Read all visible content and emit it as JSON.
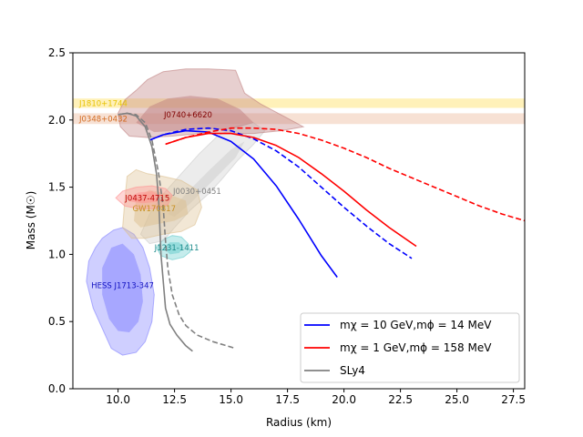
{
  "chart_data": {
    "type": "line",
    "title": "",
    "xlabel": "Radius (km)",
    "ylabel": "Mass (M☉)",
    "xlim": [
      8.0,
      28.0
    ],
    "ylim": [
      0.0,
      2.5
    ],
    "xticks": [
      10.0,
      12.5,
      15.0,
      17.5,
      20.0,
      22.5,
      25.0,
      27.5
    ],
    "xtick_labels": [
      "10.0",
      "12.5",
      "15.0",
      "17.5",
      "20.0",
      "22.5",
      "25.0",
      "27.5"
    ],
    "yticks": [
      0.0,
      0.5,
      1.0,
      1.5,
      2.0,
      2.5
    ],
    "ytick_labels": [
      "0.0",
      "0.5",
      "1.0",
      "1.5",
      "2.0",
      "2.5"
    ],
    "grid": false,
    "legend_position": "lower-right",
    "bands": [
      {
        "name": "J1810+1744",
        "label": "J1810+1744",
        "ymin": 2.09,
        "ymax": 2.16,
        "color": "#ffe680",
        "text_color": "#e6c200"
      },
      {
        "name": "J0348+0432",
        "label": "J0348+0432",
        "ymin": 1.97,
        "ymax": 2.05,
        "color": "#f0c8b0",
        "text_color": "#d2691e"
      }
    ],
    "regions": [
      {
        "name": "HESS J1713-347",
        "label": "HESS J1713-347",
        "label_pos": [
          10.2,
          0.77
        ],
        "color": "#8080ff",
        "text_color": "#1010c0",
        "outer": [
          [
            8.7,
            0.95
          ],
          [
            9.0,
            1.05
          ],
          [
            9.3,
            1.12
          ],
          [
            9.8,
            1.18
          ],
          [
            10.2,
            1.2
          ],
          [
            10.7,
            1.15
          ],
          [
            11.1,
            1.05
          ],
          [
            11.4,
            0.9
          ],
          [
            11.6,
            0.7
          ],
          [
            11.5,
            0.5
          ],
          [
            11.2,
            0.35
          ],
          [
            10.8,
            0.27
          ],
          [
            10.2,
            0.25
          ],
          [
            9.7,
            0.3
          ],
          [
            9.3,
            0.45
          ],
          [
            8.9,
            0.6
          ],
          [
            8.6,
            0.8
          ]
        ],
        "inner": [
          [
            9.3,
            0.9
          ],
          [
            9.7,
            1.05
          ],
          [
            10.2,
            1.08
          ],
          [
            10.7,
            1.0
          ],
          [
            11.0,
            0.85
          ],
          [
            11.1,
            0.65
          ],
          [
            10.9,
            0.5
          ],
          [
            10.5,
            0.42
          ],
          [
            10.0,
            0.43
          ],
          [
            9.6,
            0.52
          ],
          [
            9.3,
            0.7
          ]
        ]
      },
      {
        "name": "J1231-1411",
        "label": "J1231-1411",
        "label_pos": [
          12.6,
          1.05
        ],
        "color": "#66cccc",
        "text_color": "#1a8a8a",
        "outer": [
          [
            11.7,
            1.05
          ],
          [
            12.0,
            1.11
          ],
          [
            12.4,
            1.14
          ],
          [
            12.8,
            1.13
          ],
          [
            13.1,
            1.08
          ],
          [
            13.2,
            1.02
          ],
          [
            12.9,
            0.98
          ],
          [
            12.4,
            0.96
          ],
          [
            11.9,
            0.99
          ]
        ],
        "inner": [
          [
            12.0,
            1.05
          ],
          [
            12.3,
            1.09
          ],
          [
            12.7,
            1.09
          ],
          [
            12.9,
            1.05
          ],
          [
            12.7,
            1.01
          ],
          [
            12.3,
            1.0
          ]
        ]
      },
      {
        "name": "J0030+0451",
        "label": "J0030+0451",
        "label_pos": [
          13.5,
          1.47
        ],
        "color": "#cccccc",
        "text_color": "#808080",
        "outer": [
          [
            11.0,
            1.15
          ],
          [
            11.4,
            1.3
          ],
          [
            12.0,
            1.45
          ],
          [
            12.8,
            1.6
          ],
          [
            13.6,
            1.75
          ],
          [
            14.4,
            1.88
          ],
          [
            15.2,
            1.95
          ],
          [
            16.0,
            1.98
          ],
          [
            16.5,
            1.92
          ],
          [
            16.0,
            1.82
          ],
          [
            15.3,
            1.7
          ],
          [
            14.6,
            1.56
          ],
          [
            14.0,
            1.45
          ],
          [
            13.2,
            1.33
          ],
          [
            12.5,
            1.2
          ],
          [
            12.0,
            1.1
          ],
          [
            11.4,
            1.08
          ]
        ],
        "inner": [
          [
            12.2,
            1.3
          ],
          [
            13.0,
            1.45
          ],
          [
            14.0,
            1.62
          ],
          [
            15.0,
            1.78
          ],
          [
            15.6,
            1.84
          ],
          [
            15.2,
            1.72
          ],
          [
            14.2,
            1.55
          ],
          [
            13.2,
            1.38
          ],
          [
            12.5,
            1.28
          ]
        ]
      },
      {
        "name": "GW170817",
        "label": "GW170817",
        "label_pos": [
          11.6,
          1.34
        ],
        "color": "#dcc090",
        "text_color": "#c89020",
        "outer": [
          [
            10.2,
            1.2
          ],
          [
            10.3,
            1.4
          ],
          [
            10.4,
            1.58
          ],
          [
            10.8,
            1.63
          ],
          [
            11.3,
            1.6
          ],
          [
            12.0,
            1.58
          ],
          [
            12.8,
            1.55
          ],
          [
            13.5,
            1.48
          ],
          [
            13.7,
            1.35
          ],
          [
            13.4,
            1.22
          ],
          [
            12.8,
            1.17
          ],
          [
            12.0,
            1.15
          ],
          [
            11.2,
            1.12
          ],
          [
            10.6,
            1.12
          ]
        ],
        "inner": [
          [
            10.7,
            1.25
          ],
          [
            10.8,
            1.42
          ],
          [
            11.4,
            1.48
          ],
          [
            12.2,
            1.45
          ],
          [
            13.0,
            1.4
          ],
          [
            13.1,
            1.3
          ],
          [
            12.5,
            1.25
          ],
          [
            11.6,
            1.22
          ],
          [
            11.0,
            1.2
          ]
        ]
      },
      {
        "name": "J0437-4715",
        "label": "J0437-4715",
        "label_pos": [
          11.3,
          1.42
        ],
        "color": "#ff9090",
        "text_color": "#c00000",
        "outer": [
          [
            9.9,
            1.42
          ],
          [
            10.2,
            1.47
          ],
          [
            10.8,
            1.5
          ],
          [
            11.5,
            1.51
          ],
          [
            12.1,
            1.49
          ],
          [
            12.4,
            1.44
          ],
          [
            12.2,
            1.37
          ],
          [
            11.6,
            1.34
          ],
          [
            10.9,
            1.34
          ],
          [
            10.3,
            1.36
          ]
        ],
        "inner": [
          [
            10.4,
            1.42
          ],
          [
            10.9,
            1.46
          ],
          [
            11.5,
            1.47
          ],
          [
            11.9,
            1.44
          ],
          [
            11.7,
            1.39
          ],
          [
            11.1,
            1.38
          ],
          [
            10.6,
            1.39
          ]
        ]
      },
      {
        "name": "J0740+6620",
        "label": "J0740+6620",
        "label_pos": [
          13.1,
          2.04
        ],
        "color": "#c08080",
        "text_color": "#800000",
        "outer": [
          [
            10.0,
            2.05
          ],
          [
            10.3,
            2.15
          ],
          [
            10.8,
            2.22
          ],
          [
            11.3,
            2.3
          ],
          [
            12.0,
            2.36
          ],
          [
            13.0,
            2.38
          ],
          [
            14.0,
            2.38
          ],
          [
            15.2,
            2.37
          ],
          [
            15.6,
            2.2
          ],
          [
            16.3,
            2.12
          ],
          [
            17.2,
            2.04
          ],
          [
            18.2,
            1.95
          ],
          [
            17.2,
            1.92
          ],
          [
            16.0,
            1.9
          ],
          [
            14.8,
            1.9
          ],
          [
            13.6,
            1.9
          ],
          [
            12.4,
            1.88
          ],
          [
            11.3,
            1.87
          ],
          [
            10.5,
            1.88
          ],
          [
            10.1,
            1.95
          ]
        ],
        "inner": [
          [
            10.8,
            1.98
          ],
          [
            11.4,
            2.1
          ],
          [
            12.2,
            2.16
          ],
          [
            13.2,
            2.18
          ],
          [
            14.4,
            2.16
          ],
          [
            15.4,
            2.08
          ],
          [
            16.0,
            1.98
          ],
          [
            15.0,
            1.93
          ],
          [
            13.8,
            1.93
          ],
          [
            12.6,
            1.92
          ],
          [
            11.6,
            1.91
          ]
        ]
      }
    ],
    "series": [
      {
        "name": "m_chi = 10 GeV, m_phi = 14 MeV",
        "legend": "mχ = 10 GeV,mϕ = 14 MeV",
        "color": "#0000ff",
        "style": "solid",
        "x": [
          11.4,
          12.0,
          13.0,
          14.0,
          15.0,
          16.0,
          17.0,
          18.0,
          19.0,
          19.7
        ],
        "y": [
          1.85,
          1.89,
          1.92,
          1.91,
          1.84,
          1.71,
          1.51,
          1.26,
          0.99,
          0.83
        ]
      },
      {
        "name": "m_chi = 10 GeV, m_phi = 14 MeV (dashed)",
        "color": "#0000ff",
        "style": "dashed",
        "x": [
          11.4,
          12.0,
          13.0,
          14.0,
          15.0,
          16.0,
          17.0,
          18.0,
          19.0,
          20.0,
          21.0,
          22.0,
          23.0
        ],
        "y": [
          1.85,
          1.89,
          1.93,
          1.94,
          1.92,
          1.86,
          1.77,
          1.65,
          1.5,
          1.35,
          1.21,
          1.08,
          0.97
        ]
      },
      {
        "name": "m_chi = 1 GeV, m_phi = 158 MeV",
        "legend": "mχ = 1 GeV,mϕ = 158 MeV",
        "color": "#ff0000",
        "style": "solid",
        "x": [
          12.1,
          13.0,
          14.0,
          15.0,
          16.0,
          17.0,
          18.0,
          19.0,
          20.0,
          21.0,
          22.0,
          23.2
        ],
        "y": [
          1.82,
          1.87,
          1.9,
          1.9,
          1.87,
          1.81,
          1.72,
          1.6,
          1.47,
          1.33,
          1.2,
          1.06
        ]
      },
      {
        "name": "m_chi = 1 GeV, m_phi = 158 MeV (dashed)",
        "color": "#ff0000",
        "style": "dashed",
        "x": [
          12.1,
          13.0,
          14.0,
          15.0,
          16.0,
          17.0,
          18.0,
          19.0,
          20.0,
          21.0,
          22.0,
          23.0,
          24.0,
          25.0,
          26.0,
          27.0,
          28.0
        ],
        "y": [
          1.82,
          1.87,
          1.91,
          1.94,
          1.94,
          1.93,
          1.9,
          1.85,
          1.79,
          1.72,
          1.64,
          1.57,
          1.5,
          1.43,
          1.36,
          1.3,
          1.25
        ]
      },
      {
        "name": "SLy4",
        "legend": "SLy4",
        "color": "#808080",
        "style": "solid",
        "x": [
          10.0,
          10.4,
          10.8,
          11.2,
          11.5,
          11.7,
          11.8,
          11.85,
          11.9,
          12.0,
          12.1,
          12.3,
          12.6,
          13.0,
          13.3
        ],
        "y": [
          2.04,
          2.05,
          2.03,
          1.95,
          1.8,
          1.6,
          1.4,
          1.2,
          1.0,
          0.8,
          0.6,
          0.48,
          0.4,
          0.32,
          0.28
        ]
      },
      {
        "name": "SLy4 (dashed)",
        "color": "#808080",
        "style": "dashed",
        "x": [
          10.0,
          10.4,
          10.8,
          11.2,
          11.5,
          11.8,
          12.0,
          12.1,
          12.2,
          12.4,
          12.7,
          13.0,
          13.5,
          14.2,
          15.2
        ],
        "y": [
          2.04,
          2.05,
          2.04,
          1.98,
          1.85,
          1.6,
          1.35,
          1.1,
          0.9,
          0.7,
          0.55,
          0.47,
          0.4,
          0.35,
          0.3
        ]
      }
    ]
  }
}
